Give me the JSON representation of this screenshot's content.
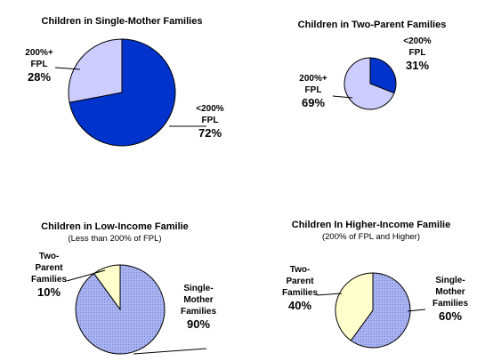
{
  "chart_data": [
    {
      "type": "pie",
      "title": "Children in Single-Mother Families",
      "subtitle": "",
      "colors": {
        "primary": "#0033cc",
        "secondary": "#ccccff"
      },
      "slices": [
        {
          "label_lines": [
            "<200%",
            "FPL"
          ],
          "value": 72,
          "value_label": "72%"
        },
        {
          "label_lines": [
            "200%+",
            "FPL"
          ],
          "value": 28,
          "value_label": "28%"
        }
      ]
    },
    {
      "type": "pie",
      "title": "Children in Two-Parent Families",
      "subtitle": "",
      "colors": {
        "primary": "#0033cc",
        "secondary": "#ccccff"
      },
      "slices": [
        {
          "label_lines": [
            "<200%",
            "FPL"
          ],
          "value": 31,
          "value_label": "31%"
        },
        {
          "label_lines": [
            "200%+",
            "FPL"
          ],
          "value": 69,
          "value_label": "69%"
        }
      ]
    },
    {
      "type": "pie",
      "title": "Children in Low-Income Familie",
      "subtitle": "(Less than 200% of FPL)",
      "colors": {
        "primary": "#99a6ee",
        "secondary": "#ffffcc"
      },
      "slices": [
        {
          "label_lines": [
            "Single-",
            "Mother",
            "Families"
          ],
          "value": 90,
          "value_label": "90%"
        },
        {
          "label_lines": [
            "Two-",
            "Parent",
            "Families"
          ],
          "value": 10,
          "value_label": "10%"
        }
      ]
    },
    {
      "type": "pie",
      "title": "Children In Higher-Income Familie",
      "subtitle": "(200% of FPL and Higher)",
      "colors": {
        "primary": "#99a6ee",
        "secondary": "#ffffcc"
      },
      "slices": [
        {
          "label_lines": [
            "Single-",
            "Mother",
            "Families"
          ],
          "value": 60,
          "value_label": "60%"
        },
        {
          "label_lines": [
            "Two-",
            "Parent",
            "Families"
          ],
          "value": 40,
          "value_label": "40%"
        }
      ]
    }
  ]
}
